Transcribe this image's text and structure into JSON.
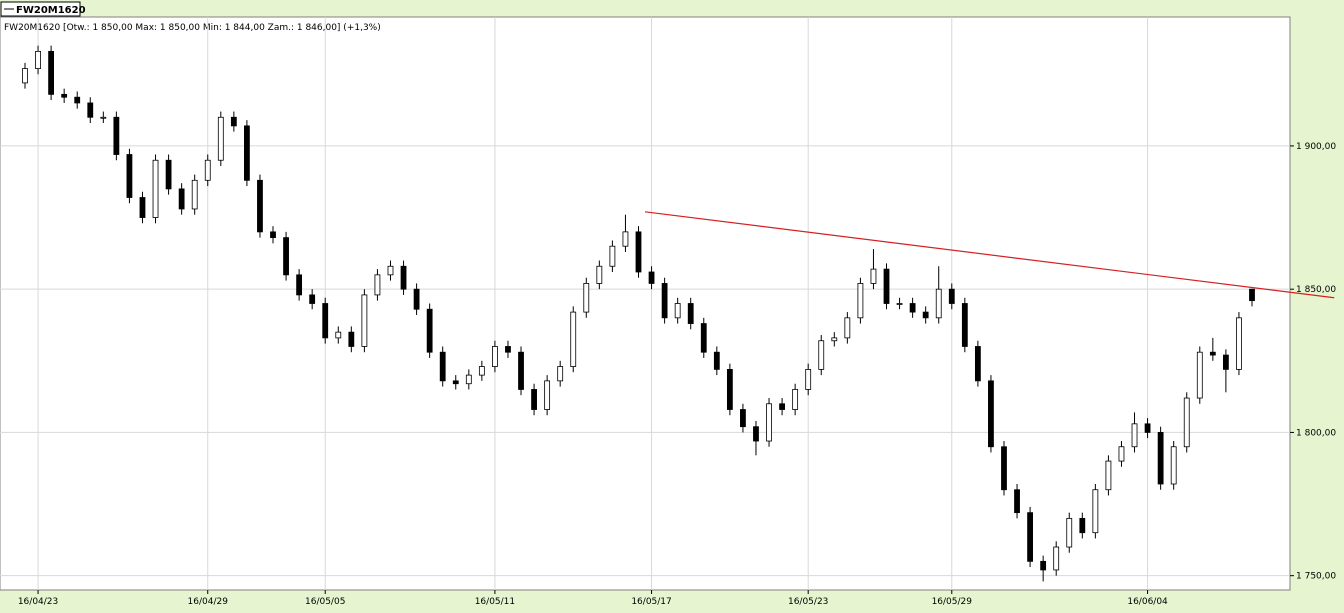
{
  "chart_data": {
    "type": "candlestick",
    "title": "FW20M1620",
    "subtitle": "FW20M1620 [Otw.: 1 850,00  Max: 1 850,00  Min: 1 844,00  Zam.: 1 846,00] (+1,3%)",
    "categories": [
      null,
      "16/04/23",
      null,
      null,
      null,
      null,
      null,
      null,
      null,
      null,
      null,
      null,
      null,
      null,
      "16/04/29",
      null,
      null,
      null,
      null,
      null,
      null,
      null,
      null,
      "16/05/05",
      null,
      null,
      null,
      null,
      null,
      null,
      null,
      null,
      null,
      null,
      null,
      null,
      "16/05/11",
      null,
      null,
      null,
      null,
      null,
      null,
      null,
      null,
      null,
      null,
      null,
      "16/05/17",
      null,
      null,
      null,
      null,
      null,
      null,
      null,
      null,
      null,
      null,
      null,
      "16/05/23",
      null,
      null,
      null,
      null,
      null,
      null,
      null,
      null,
      null,
      null,
      "16/05/29",
      null,
      null,
      null,
      null,
      null,
      null,
      null,
      null,
      null,
      null,
      null,
      null,
      null,
      null,
      "16/06/04",
      null,
      null,
      null,
      null,
      null,
      null,
      null,
      null
    ],
    "open": [
      1922,
      1927,
      1933,
      1918,
      1917,
      1915,
      1910,
      1910,
      1897,
      1882,
      1875,
      1895,
      1885,
      1878,
      1888,
      1895,
      1910,
      1907,
      1888,
      1870,
      1868,
      1855,
      1848,
      1845,
      1833,
      1835,
      1830,
      1848,
      1855,
      1858,
      1850,
      1843,
      1828,
      1818,
      1817,
      1820,
      1823,
      1830,
      1828,
      1815,
      1808,
      1818,
      1823,
      1842,
      1852,
      1858,
      1865,
      1870,
      1856,
      1852,
      1840,
      1845,
      1838,
      1828,
      1822,
      1808,
      1802,
      1797,
      1810,
      1808,
      1815,
      1822,
      1832,
      1833,
      1840,
      1852,
      1857,
      1845,
      1845,
      1842,
      1840,
      1850,
      1845,
      1830,
      1818,
      1795,
      1780,
      1772,
      1755,
      1752,
      1760,
      1770,
      1765,
      1780,
      1790,
      1795,
      1803,
      1800,
      1782,
      1795,
      1812,
      1828,
      1827,
      1822,
      1850
    ],
    "high": [
      1929,
      1935,
      1935,
      1920,
      1919,
      1917,
      1912,
      1912,
      1899,
      1884,
      1897,
      1897,
      1887,
      1890,
      1897,
      1912,
      1912,
      1909,
      1890,
      1872,
      1870,
      1857,
      1850,
      1847,
      1837,
      1837,
      1850,
      1857,
      1860,
      1860,
      1852,
      1845,
      1830,
      1820,
      1822,
      1825,
      1832,
      1832,
      1830,
      1817,
      1820,
      1825,
      1844,
      1854,
      1860,
      1867,
      1876,
      1872,
      1858,
      1854,
      1847,
      1847,
      1840,
      1830,
      1824,
      1810,
      1804,
      1812,
      1812,
      1817,
      1824,
      1834,
      1835,
      1842,
      1854,
      1864,
      1859,
      1847,
      1847,
      1844,
      1858,
      1852,
      1847,
      1832,
      1820,
      1797,
      1782,
      1774,
      1757,
      1762,
      1772,
      1772,
      1782,
      1792,
      1797,
      1807,
      1805,
      1802,
      1797,
      1814,
      1830,
      1833,
      1829,
      1842,
      1850
    ],
    "low": [
      1920,
      1925,
      1916,
      1915,
      1913,
      1908,
      1908,
      1895,
      1880,
      1873,
      1873,
      1883,
      1876,
      1876,
      1886,
      1893,
      1905,
      1886,
      1868,
      1866,
      1853,
      1846,
      1843,
      1831,
      1831,
      1828,
      1828,
      1846,
      1853,
      1848,
      1841,
      1826,
      1816,
      1815,
      1815,
      1818,
      1821,
      1826,
      1813,
      1806,
      1806,
      1816,
      1821,
      1840,
      1850,
      1856,
      1863,
      1854,
      1850,
      1838,
      1838,
      1836,
      1826,
      1820,
      1806,
      1800,
      1792,
      1795,
      1806,
      1806,
      1813,
      1820,
      1830,
      1831,
      1838,
      1850,
      1843,
      1843,
      1840,
      1838,
      1838,
      1843,
      1828,
      1816,
      1793,
      1778,
      1770,
      1753,
      1748,
      1750,
      1758,
      1763,
      1763,
      1778,
      1788,
      1793,
      1798,
      1780,
      1780,
      1793,
      1810,
      1825,
      1814,
      1820,
      1844
    ],
    "close": [
      1927,
      1933,
      1918,
      1917,
      1915,
      1910,
      1910,
      1897,
      1882,
      1875,
      1895,
      1885,
      1878,
      1888,
      1895,
      1910,
      1907,
      1888,
      1870,
      1868,
      1855,
      1848,
      1845,
      1833,
      1835,
      1830,
      1848,
      1855,
      1858,
      1850,
      1843,
      1828,
      1818,
      1817,
      1820,
      1823,
      1830,
      1828,
      1815,
      1808,
      1818,
      1823,
      1842,
      1852,
      1858,
      1865,
      1870,
      1856,
      1852,
      1840,
      1845,
      1838,
      1828,
      1822,
      1808,
      1802,
      1797,
      1810,
      1808,
      1815,
      1822,
      1832,
      1833,
      1840,
      1852,
      1857,
      1845,
      1845,
      1842,
      1840,
      1850,
      1845,
      1830,
      1818,
      1795,
      1780,
      1772,
      1755,
      1752,
      1760,
      1770,
      1765,
      1780,
      1790,
      1795,
      1803,
      1800,
      1782,
      1795,
      1812,
      1828,
      1827,
      1822,
      1840,
      1846
    ],
    "ylim": [
      1745,
      1945
    ],
    "yticks": [
      {
        "value": 1750,
        "label": "1 750,00"
      },
      {
        "value": 1800,
        "label": "1 800,00"
      },
      {
        "value": 1850,
        "label": "1 850,00"
      },
      {
        "value": 1900,
        "label": "1 900,00"
      }
    ],
    "grid": true,
    "up_color": "#ffffff",
    "down_color": "#000000",
    "trendline": {
      "color": "#d42020",
      "x": [
        47.5,
        100.3
      ],
      "y": [
        1877,
        1847
      ]
    }
  }
}
